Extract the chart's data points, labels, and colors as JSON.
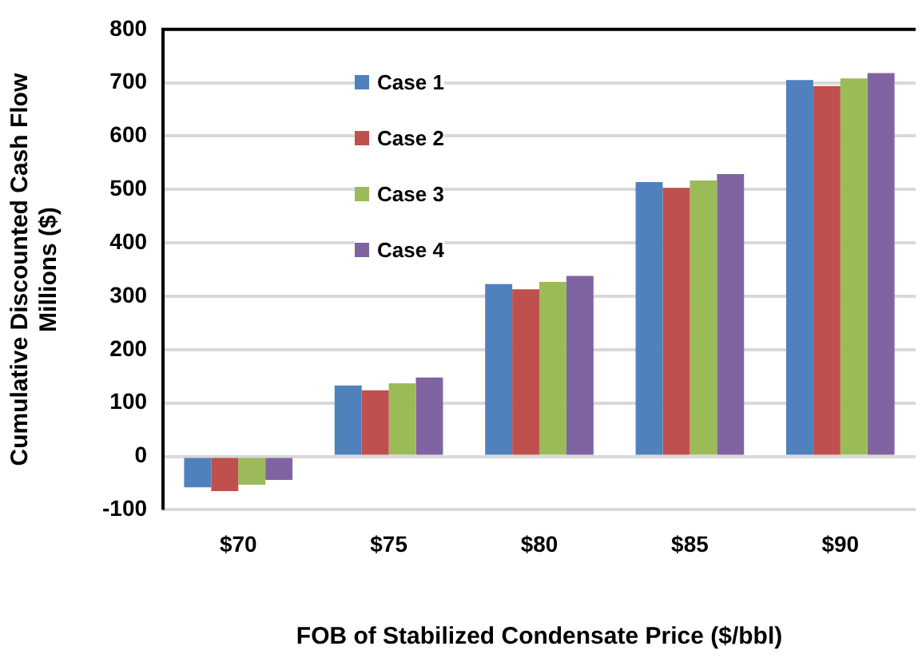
{
  "chart_data": {
    "type": "bar",
    "xlabel": "FOB of Stabilized Condensate Price ($/bbl)",
    "ylabel": "Cumulative Discounted Cash Flow\nMillions ($)",
    "categories": [
      "$70",
      "$75",
      "$80",
      "$85",
      "$90"
    ],
    "series": [
      {
        "name": "Case 1",
        "color": "#4f81bd",
        "values": [
          -58,
          133,
          323,
          514,
          705
        ]
      },
      {
        "name": "Case 2",
        "color": "#c0504d",
        "values": [
          -65,
          124,
          313,
          503,
          694
        ]
      },
      {
        "name": "Case 3",
        "color": "#9bbb59",
        "values": [
          -53,
          137,
          327,
          517,
          708
        ]
      },
      {
        "name": "Case 4",
        "color": "#8064a2",
        "values": [
          -44,
          148,
          338,
          529,
          718
        ]
      }
    ],
    "ylim": [
      -100,
      800
    ],
    "yticks": [
      -100,
      0,
      100,
      200,
      300,
      400,
      500,
      600,
      700,
      800
    ],
    "grid": "y",
    "legend": "top left"
  }
}
